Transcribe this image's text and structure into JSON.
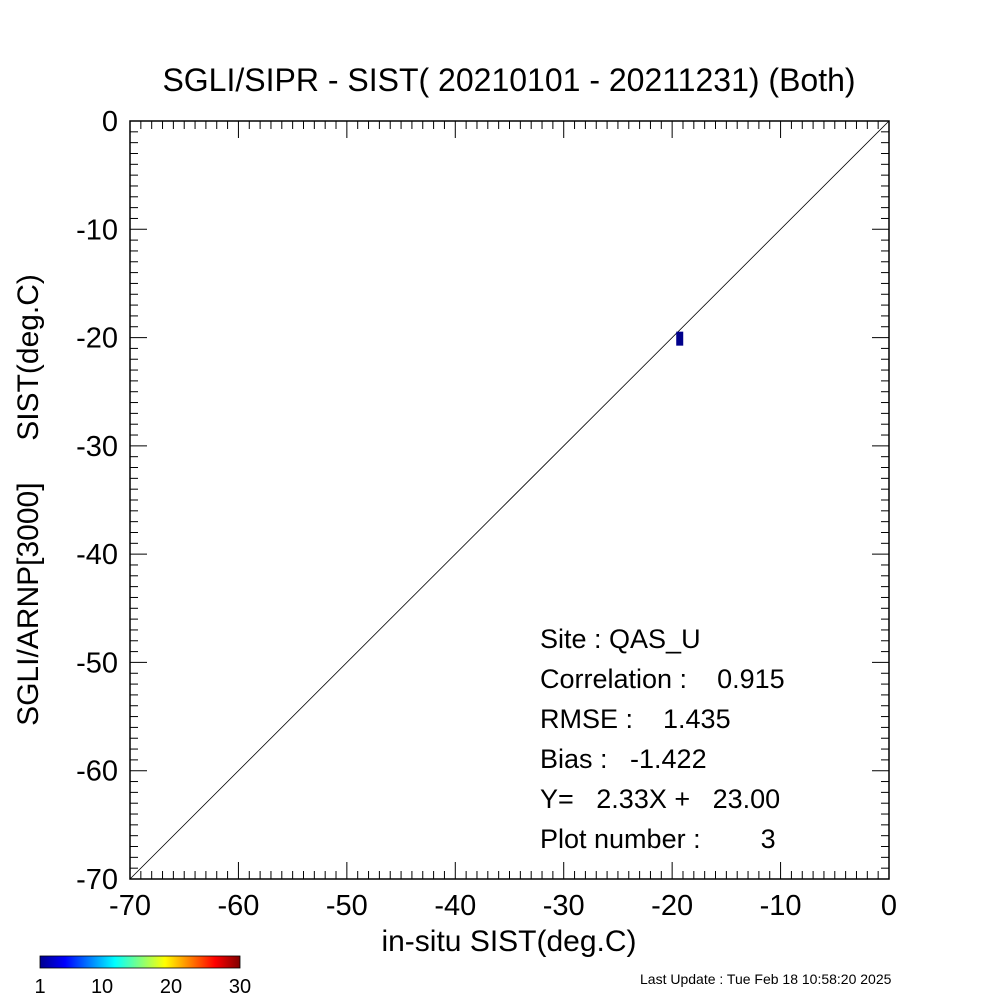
{
  "chart_data": {
    "type": "scatter",
    "title": "SGLI/SIPR - SIST( 20210101 - 20211231) (Both)",
    "xlabel": "in-situ SIST(deg.C)",
    "ylabel": "SGLI/ARNP[3000]     SIST(deg.C)",
    "xlim": [
      -70,
      0
    ],
    "ylim": [
      -70,
      0
    ],
    "xticks": [
      -70,
      -60,
      -50,
      -40,
      -30,
      -20,
      -10,
      0
    ],
    "yticks": [
      0,
      -10,
      -20,
      -30,
      -40,
      -50,
      -60,
      -70
    ],
    "x_tick_labels": [
      "-70",
      "-60",
      "-50",
      "-40",
      "-30",
      "-20",
      "-10",
      "0"
    ],
    "y_tick_labels": [
      "0",
      "-10",
      "-20",
      "-30",
      "-40",
      "-50",
      "-60",
      "-70"
    ],
    "reference_line": "1:1",
    "grid": false,
    "points": [
      {
        "x": -19.3,
        "y": -20.1,
        "count": 1
      }
    ],
    "stats": {
      "site": "Site : QAS_U",
      "correlation": "Correlation :    0.915",
      "rmse": "RMSE :    1.435",
      "bias": "Bias :   -1.422",
      "regression": "Y=   2.33X +   23.00",
      "plot_number": "Plot number :        3"
    },
    "colorbar": {
      "range": [
        1,
        30
      ],
      "tick_labels": [
        "1",
        "10",
        "20",
        "30"
      ],
      "colormap": "jet",
      "point_color": "#00008b"
    }
  },
  "footer": {
    "last_update": "Last Update : Tue Feb 18 10:58:20 2025"
  }
}
